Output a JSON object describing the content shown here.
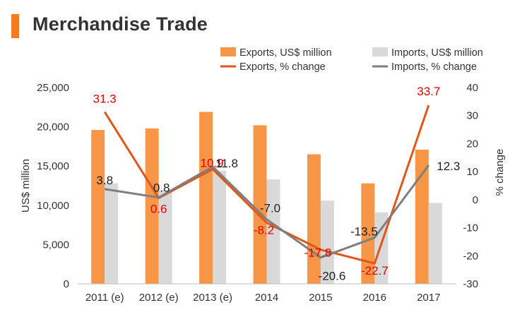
{
  "title": "Merchandise Trade",
  "colors": {
    "accent": "#f47b20",
    "exports_bar": "#f79646",
    "imports_bar": "#d9d9d9",
    "exports_line": "#e0561b",
    "imports_line": "#7f7f7f",
    "exports_label": "#e60000",
    "imports_label": "#222222"
  },
  "chart_data": {
    "type": "bar",
    "categories": [
      "2011 (e)",
      "2012 (e)",
      "2013 (e)",
      "2014",
      "2015",
      "2016",
      "2017"
    ],
    "series": [
      {
        "name": "Exports, US$ million",
        "kind": "bar",
        "axis": "left",
        "values": [
          19600,
          19800,
          21900,
          20200,
          16500,
          12800,
          17100
        ]
      },
      {
        "name": "Imports, US$ million",
        "kind": "bar",
        "axis": "left",
        "values": [
          12800,
          11900,
          14400,
          13300,
          10600,
          9100,
          10300
        ]
      },
      {
        "name": "Exports, % change",
        "kind": "line",
        "axis": "right",
        "values": [
          31.3,
          0.6,
          10.9,
          -8.2,
          -17.8,
          -22.7,
          33.7
        ],
        "labels": [
          "31.3",
          "0.6",
          "10.9",
          "-8.2",
          "-17.8",
          "-22.7",
          "33.7"
        ]
      },
      {
        "name": "Imports, % change",
        "kind": "line",
        "axis": "right",
        "values": [
          3.8,
          0.8,
          11.8,
          -7.0,
          -20.6,
          -13.5,
          12.3
        ],
        "labels": [
          "3.8",
          "0.8",
          "11.8",
          "-7.0",
          "-20.6",
          "-13.5",
          "12.3"
        ]
      }
    ],
    "ylabel": "US$ million",
    "y2label": "% change",
    "ylim": [
      0,
      25000
    ],
    "y2lim": [
      -30,
      40
    ],
    "yticks": [
      "0",
      "5,000",
      "10,000",
      "15,000",
      "20,000",
      "25,000"
    ],
    "y2ticks": [
      "-30",
      "-20",
      "-10",
      "0",
      "10",
      "20",
      "30",
      "40"
    ],
    "legend_position": "top-right",
    "grid": false
  }
}
